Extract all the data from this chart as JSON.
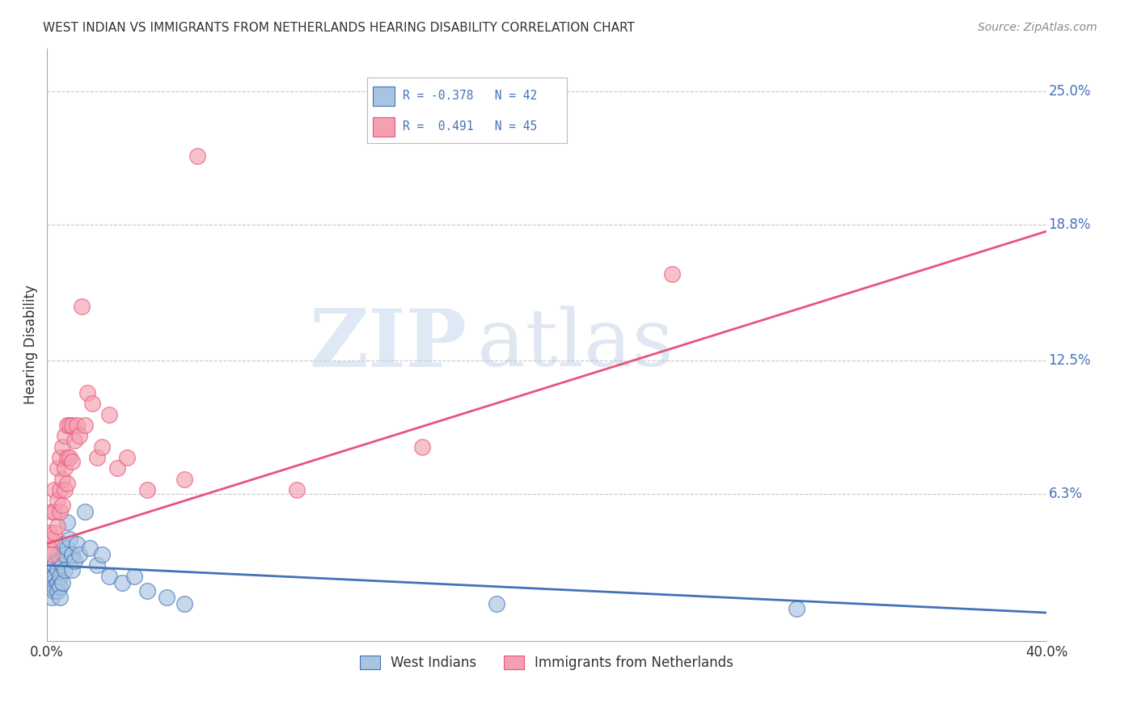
{
  "title": "WEST INDIAN VS IMMIGRANTS FROM NETHERLANDS HEARING DISABILITY CORRELATION CHART",
  "source": "Source: ZipAtlas.com",
  "ylabel": "Hearing Disability",
  "ytick_labels": [
    "6.3%",
    "12.5%",
    "18.8%",
    "25.0%"
  ],
  "ytick_values": [
    0.063,
    0.125,
    0.188,
    0.25
  ],
  "xlim": [
    0.0,
    0.4
  ],
  "ylim": [
    -0.005,
    0.27
  ],
  "blue_R": -0.378,
  "blue_N": 42,
  "pink_R": 0.491,
  "pink_N": 45,
  "blue_color": "#a8c4e0",
  "pink_color": "#f4a0b0",
  "blue_line_color": "#4472b8",
  "pink_line_color": "#e8547a",
  "legend_blue_label": "West Indians",
  "legend_pink_label": "Immigrants from Netherlands",
  "blue_x": [
    0.001,
    0.001,
    0.002,
    0.002,
    0.002,
    0.003,
    0.003,
    0.003,
    0.003,
    0.004,
    0.004,
    0.004,
    0.004,
    0.005,
    0.005,
    0.005,
    0.005,
    0.006,
    0.006,
    0.006,
    0.007,
    0.007,
    0.008,
    0.008,
    0.009,
    0.01,
    0.01,
    0.011,
    0.012,
    0.013,
    0.015,
    0.017,
    0.02,
    0.022,
    0.025,
    0.03,
    0.035,
    0.04,
    0.048,
    0.055,
    0.18,
    0.3
  ],
  "blue_y": [
    0.025,
    0.02,
    0.03,
    0.022,
    0.015,
    0.03,
    0.025,
    0.02,
    0.018,
    0.035,
    0.028,
    0.022,
    0.018,
    0.032,
    0.025,
    0.02,
    0.015,
    0.04,
    0.03,
    0.022,
    0.035,
    0.028,
    0.05,
    0.038,
    0.042,
    0.035,
    0.028,
    0.032,
    0.04,
    0.035,
    0.055,
    0.038,
    0.03,
    0.035,
    0.025,
    0.022,
    0.025,
    0.018,
    0.015,
    0.012,
    0.012,
    0.01
  ],
  "pink_x": [
    0.001,
    0.001,
    0.002,
    0.002,
    0.002,
    0.003,
    0.003,
    0.003,
    0.004,
    0.004,
    0.004,
    0.005,
    0.005,
    0.005,
    0.006,
    0.006,
    0.006,
    0.007,
    0.007,
    0.007,
    0.008,
    0.008,
    0.008,
    0.009,
    0.009,
    0.01,
    0.01,
    0.011,
    0.012,
    0.013,
    0.014,
    0.015,
    0.016,
    0.018,
    0.02,
    0.022,
    0.025,
    0.028,
    0.032,
    0.04,
    0.055,
    0.06,
    0.1,
    0.15,
    0.25
  ],
  "pink_y": [
    0.045,
    0.038,
    0.055,
    0.042,
    0.035,
    0.065,
    0.055,
    0.045,
    0.075,
    0.06,
    0.048,
    0.08,
    0.065,
    0.055,
    0.085,
    0.07,
    0.058,
    0.09,
    0.075,
    0.065,
    0.095,
    0.08,
    0.068,
    0.095,
    0.08,
    0.095,
    0.078,
    0.088,
    0.095,
    0.09,
    0.15,
    0.095,
    0.11,
    0.105,
    0.08,
    0.085,
    0.1,
    0.075,
    0.08,
    0.065,
    0.07,
    0.22,
    0.065,
    0.085,
    0.165
  ],
  "pink_line_start_y": 0.04,
  "pink_line_end_y": 0.185,
  "blue_line_start_y": 0.03,
  "blue_line_end_y": 0.008,
  "watermark_text": "ZIP",
  "watermark_text2": "atlas",
  "background_color": "#ffffff",
  "grid_color": "#c8c8c8"
}
